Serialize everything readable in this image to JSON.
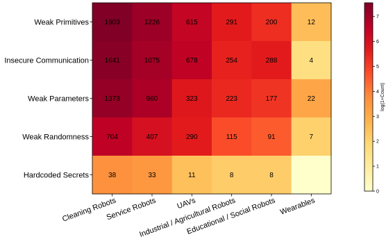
{
  "chart_data": {
    "type": "heatmap",
    "rows": [
      "Weak Primitives",
      "Insecure Communication",
      "Weak Parameters",
      "Weak Randomness",
      "Hardcoded Secrets"
    ],
    "columns": [
      "Cleaning Robots",
      "Service Robots",
      "UAVs",
      "Industrial / Agricultural Robots",
      "Educational / Social Robots",
      "Wearables"
    ],
    "values": [
      [
        1903,
        1226,
        615,
        291,
        200,
        12
      ],
      [
        1641,
        1075,
        678,
        254,
        288,
        4
      ],
      [
        1373,
        960,
        323,
        223,
        177,
        22
      ],
      [
        704,
        407,
        290,
        115,
        91,
        7
      ],
      [
        38,
        33,
        11,
        8,
        8,
        0
      ]
    ],
    "cell_labels": [
      [
        "1903",
        "1226",
        "615",
        "291",
        "200",
        "12"
      ],
      [
        "1641",
        "1075",
        "678",
        "254",
        "288",
        "4"
      ],
      [
        "1373",
        "960",
        "323",
        "223",
        "177",
        "22"
      ],
      [
        "704",
        "407",
        "290",
        "115",
        "91",
        "7"
      ],
      [
        "38",
        "33",
        "11",
        "8",
        "8",
        ""
      ]
    ],
    "colorbar": {
      "label": "log(1+Count)",
      "range": [
        0,
        7.55
      ],
      "ticks": [
        "0",
        "1",
        "2",
        "3",
        "4",
        "5",
        "6",
        "7"
      ],
      "colormap": "YlOrRd"
    },
    "title": "",
    "xlabel": "",
    "ylabel": ""
  }
}
